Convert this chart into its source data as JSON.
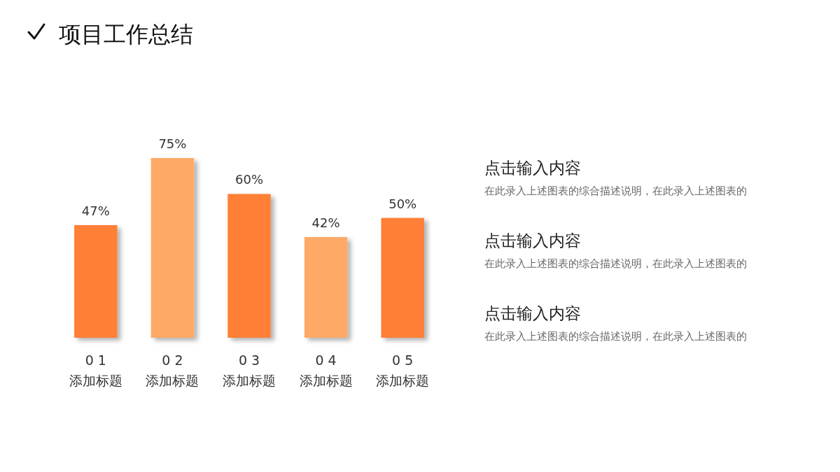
{
  "chart_data": {
    "type": "bar",
    "title": "项目工作总结",
    "categories": [
      "0 1\n添加标题",
      "0 2\n添加标题",
      "0 3\n添加标题",
      "0 4\n添加标题",
      "0 5\n添加标题"
    ],
    "values": [
      47,
      75,
      60,
      42,
      50
    ],
    "value_labels": [
      "47%",
      "75%",
      "60%",
      "42%",
      "50%"
    ],
    "colors": [
      "#fe7f35",
      "#fea966",
      "#fe7f35",
      "#fea966",
      "#fe7f35"
    ],
    "annotations": [
      "点击输入内容",
      "在此录入上述图表的综合描述说明，在此录入上述图表的",
      "点击输入内容",
      "在此录入上述图表的综合描述说明，在此录入上述图表的",
      "点击输入内容",
      "在此录入上述图表的综合描述说明，在此录入上述图表的"
    ]
  }
}
